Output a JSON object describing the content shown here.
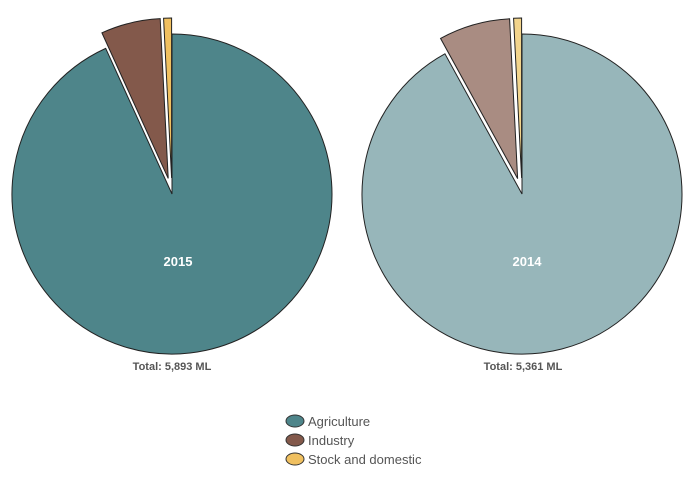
{
  "chart_data": [
    {
      "type": "pie",
      "center_label": "2015",
      "total_label": "Total: 5,893 ML",
      "categories": [
        "Agriculture",
        "Industry",
        "Stock and domestic"
      ],
      "values": [
        93.2,
        6.0,
        0.8
      ],
      "colors": [
        "#4e858a",
        "#83594b",
        "#f0c060"
      ],
      "exploded": [
        false,
        true,
        true
      ]
    },
    {
      "type": "pie",
      "center_label": "2014",
      "total_label": "Total: 5,361 ML",
      "categories": [
        "Agriculture",
        "Industry",
        "Stock and domestic"
      ],
      "values": [
        92.0,
        7.2,
        0.8
      ],
      "colors": [
        "#97b6ba",
        "#a98c82",
        "#f2d48c"
      ],
      "exploded": [
        false,
        true,
        true
      ]
    }
  ],
  "legend": {
    "placement": "bottom-center",
    "items": [
      {
        "label": "Agriculture",
        "color": "#4e858a"
      },
      {
        "label": "Industry",
        "color": "#83594b"
      },
      {
        "label": "Stock and domestic",
        "color": "#f0c060"
      }
    ]
  }
}
